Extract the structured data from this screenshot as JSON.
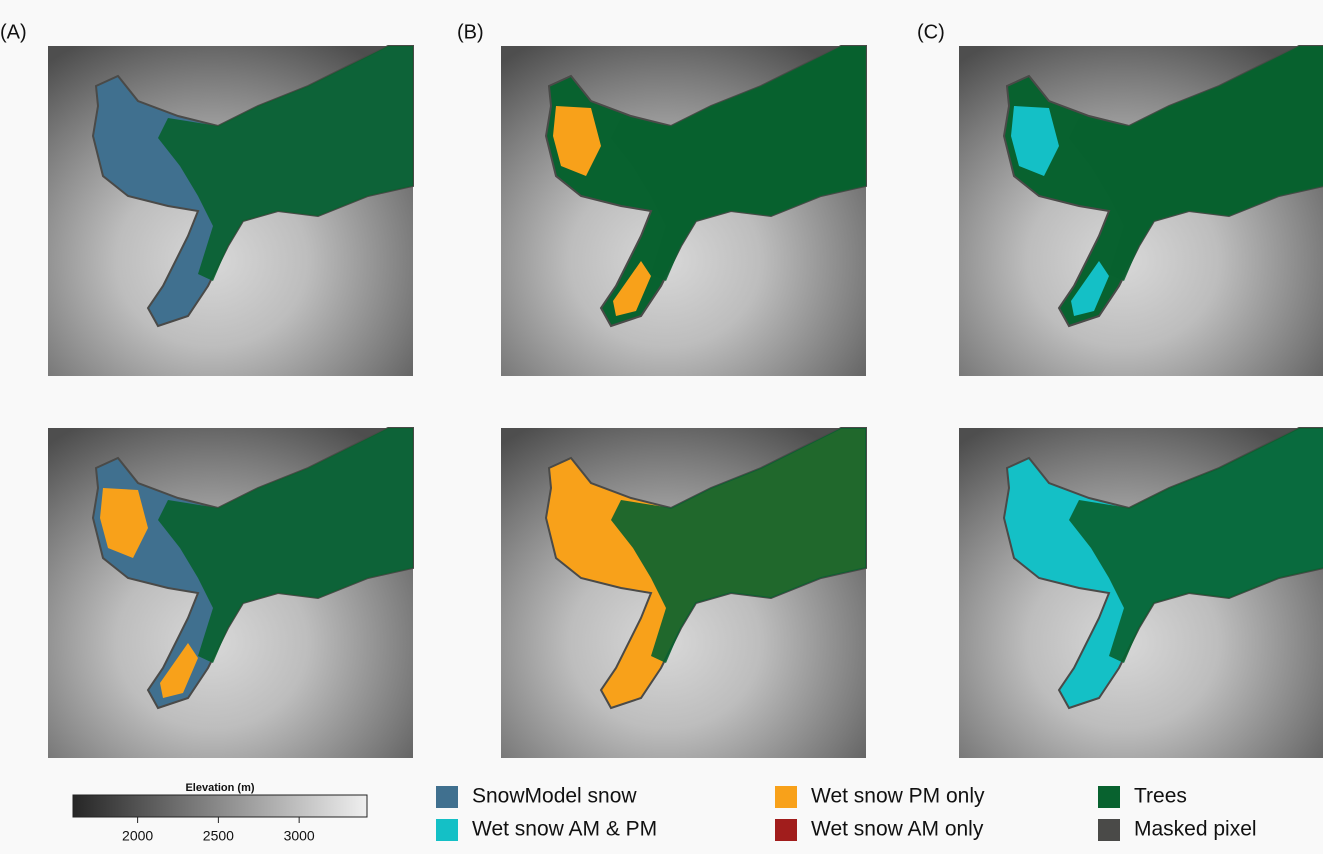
{
  "panel_labels": [
    "(A)",
    "(B)",
    "(C)"
  ],
  "colorbar": {
    "title": "Elevation (m)",
    "lim": [
      1600,
      3420
    ],
    "ticks": [
      2000,
      2500,
      3000
    ]
  },
  "legend": [
    {
      "label": "SnowModel snow",
      "color": "#40708f"
    },
    {
      "label": "Wet snow PM only",
      "color": "#f8a11a"
    },
    {
      "label": "Trees",
      "color": "#08622f"
    },
    {
      "label": "Wet snow AM & PM",
      "color": "#14c0c6"
    },
    {
      "label": "Wet snow AM only",
      "color": "#a11d1c"
    },
    {
      "label": "Masked pixel",
      "color": "#4a4a48"
    }
  ]
}
